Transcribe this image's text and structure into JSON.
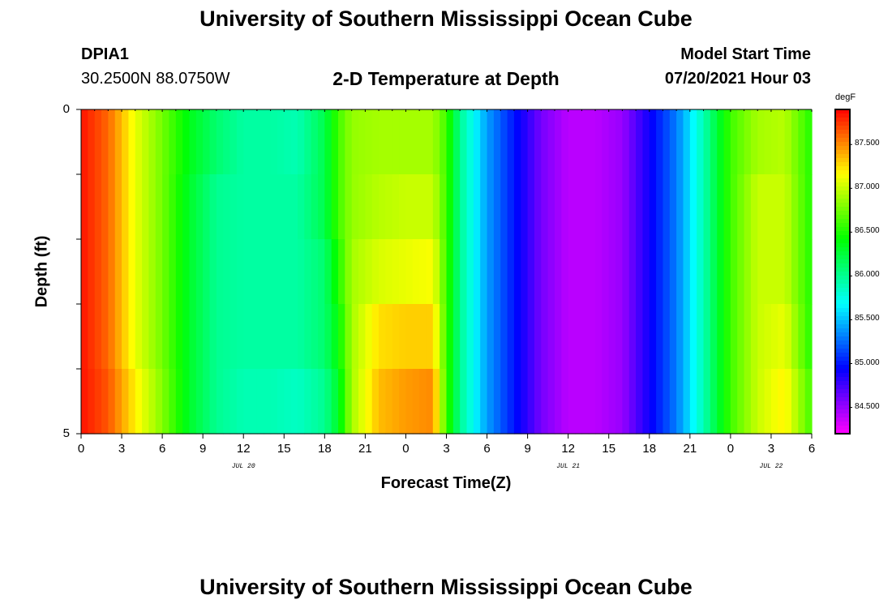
{
  "page": {
    "title_top": "University of Southern Mississippi Ocean Cube",
    "title_bottom": "University of Southern Mississippi Ocean Cube",
    "station_id": "DPIA1",
    "station_coords": "30.2500N  88.0750W",
    "plot_title": "2-D Temperature at Depth",
    "model_start_label": "Model Start Time",
    "model_start_value": "07/20/2021 Hour 03"
  },
  "chart_data": {
    "type": "heatmap",
    "title": "2-D Temperature at Depth",
    "xlabel": "Forecast Time(Z)",
    "ylabel": "Depth (ft)",
    "colorbar_unit": "degF",
    "x_range_hours": [
      0,
      54
    ],
    "y_range": [
      0,
      5
    ],
    "x_tick_labels": [
      "0",
      "3",
      "6",
      "9",
      "12",
      "15",
      "18",
      "21",
      "0",
      "3",
      "6",
      "9",
      "12",
      "15",
      "18",
      "21",
      "0",
      "3",
      "6"
    ],
    "y_tick_labels": [
      "0",
      "5"
    ],
    "date_labels": [
      {
        "label": "JUL 20",
        "hour": 12
      },
      {
        "label": "JUL 21",
        "hour": 36
      },
      {
        "label": "JUL 22",
        "hour": 51
      }
    ],
    "colorbar": {
      "min": 84.2,
      "max": 87.9,
      "labels": [
        "84.500",
        "85.000",
        "85.500",
        "86.000",
        "86.500",
        "87.000",
        "87.500"
      ],
      "label_values": [
        84.5,
        85.0,
        85.5,
        86.0,
        86.5,
        87.0,
        87.5
      ]
    },
    "depth_layers": [
      0,
      1,
      2,
      3,
      4,
      5
    ],
    "time_key_hours": [
      0,
      2,
      4,
      6,
      8,
      10,
      12,
      14,
      16,
      18,
      19,
      20,
      22,
      24,
      26,
      27,
      28,
      30,
      32,
      34,
      36,
      38,
      40,
      42,
      44,
      46,
      48,
      50,
      52,
      54
    ],
    "temperature_keys": [
      [
        87.85,
        87.6,
        87.1,
        86.75,
        86.35,
        86.1,
        85.95,
        85.95,
        85.9,
        86.2,
        86.6,
        86.85,
        86.9,
        86.9,
        86.9,
        86.6,
        86.0,
        85.4,
        85.0,
        84.6,
        84.4,
        84.4,
        84.5,
        84.9,
        85.3,
        85.9,
        86.6,
        86.9,
        86.95,
        86.5
      ],
      [
        87.85,
        87.6,
        87.1,
        86.75,
        86.3,
        86.0,
        85.95,
        85.95,
        85.95,
        86.2,
        86.6,
        86.85,
        86.95,
        87.0,
        87.0,
        86.6,
        86.0,
        85.4,
        85.0,
        84.6,
        84.4,
        84.4,
        84.5,
        84.9,
        85.3,
        85.9,
        86.6,
        87.0,
        87.0,
        86.5
      ],
      [
        87.85,
        87.6,
        87.1,
        86.75,
        86.3,
        86.0,
        85.95,
        85.95,
        85.95,
        86.1,
        86.5,
        86.9,
        87.05,
        87.1,
        87.15,
        86.6,
        86.0,
        85.4,
        85.0,
        84.6,
        84.4,
        84.4,
        84.5,
        84.9,
        85.3,
        85.9,
        86.6,
        87.0,
        87.0,
        86.5
      ],
      [
        87.85,
        87.6,
        87.1,
        86.75,
        86.3,
        86.0,
        85.95,
        85.95,
        85.95,
        86.1,
        86.4,
        86.9,
        87.25,
        87.3,
        87.3,
        86.6,
        86.0,
        85.4,
        85.0,
        84.6,
        84.4,
        84.4,
        84.5,
        84.9,
        85.3,
        85.9,
        86.6,
        87.0,
        87.1,
        86.5
      ],
      [
        87.85,
        87.65,
        87.2,
        86.8,
        86.3,
        86.0,
        85.9,
        85.9,
        85.85,
        86.0,
        86.3,
        86.9,
        87.35,
        87.45,
        87.5,
        86.6,
        86.0,
        85.4,
        85.0,
        84.6,
        84.4,
        84.4,
        84.5,
        84.9,
        85.3,
        85.9,
        86.6,
        87.0,
        87.2,
        86.6
      ],
      [
        87.85,
        87.65,
        87.2,
        86.8,
        86.3,
        86.0,
        85.9,
        85.85,
        85.7,
        85.9,
        86.3,
        86.9,
        87.4,
        87.55,
        87.65,
        86.6,
        86.0,
        85.4,
        85.0,
        84.6,
        84.4,
        84.4,
        84.5,
        84.9,
        85.3,
        85.9,
        86.6,
        87.0,
        87.2,
        86.6
      ]
    ]
  }
}
